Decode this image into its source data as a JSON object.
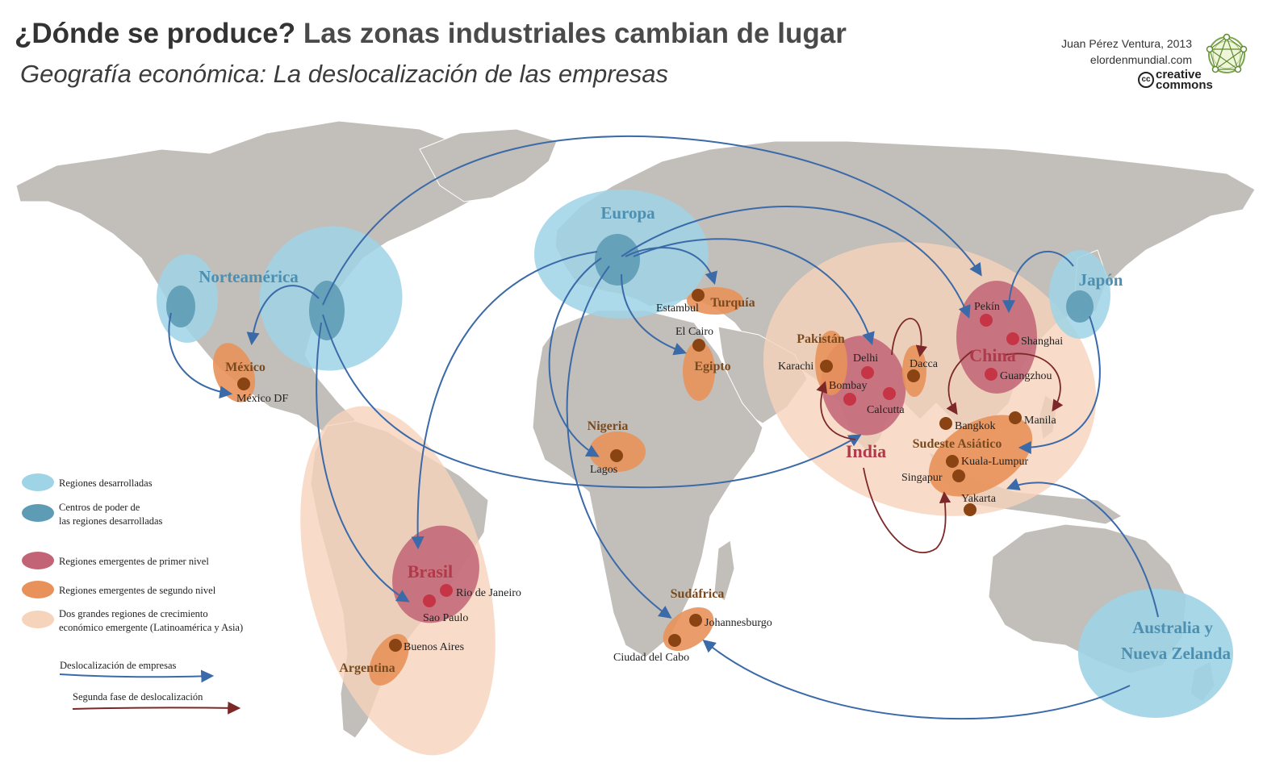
{
  "header": {
    "title_part1": "¿Dónde se produce?",
    "title_part2": "Las zonas industriales cambian de lugar",
    "subtitle": "Geografía económica: La deslocalización de las empresas",
    "credit_author": "Juan Pérez Ventura, 2013",
    "credit_site": "elordenmundial.com",
    "license_top": "creative",
    "license_bottom": "commons",
    "license_mark": "cc"
  },
  "colors": {
    "land": "#c2beb9",
    "developed_region": "#9fd3e6",
    "power_center": "#5e9bb5",
    "emerging_first": "#c26476",
    "emerging_second": "#e8915a",
    "growth_region": "#f6d3bb",
    "arrow_relocation": "#3b6aa8",
    "arrow_second_phase": "#7d2828",
    "city_dot_first": "#c63545",
    "city_dot_second": "#8a4312"
  },
  "regions": {
    "norteamerica": "Norteamérica",
    "europa": "Europa",
    "japon": "Japón",
    "australia_line1": "Australia y",
    "australia_line2": "Nueva Zelanda",
    "mexico": "México",
    "turquia": "Turquía",
    "egipto": "Egipto",
    "pakistan": "Pakistán",
    "nigeria": "Nigeria",
    "sudafrica": "Sudáfrica",
    "argentina": "Argentina",
    "sudeste_asiatico": "Sudeste Asiático",
    "brasil": "Brasil",
    "india": "India",
    "china": "China"
  },
  "cities": {
    "mexico_df": "México DF",
    "estambul": "Estambul",
    "el_cairo": "El Cairo",
    "karachi": "Karachi",
    "delhi": "Delhi",
    "bombay": "Bombay",
    "calcutta": "Calcutta",
    "dacca": "Dacca",
    "pekin": "Pekín",
    "shanghai": "Shanghai",
    "guangzhou": "Guangzhou",
    "bangkok": "Bangkok",
    "manila": "Manila",
    "kuala_lumpur": "Kuala-Lumpur",
    "singapur": "Singapur",
    "yakarta": "Yakarta",
    "lagos": "Lagos",
    "rio_de_janeiro": "Rio de Janeiro",
    "sao_paulo": "Sao Paulo",
    "buenos_aires": "Buenos Aires",
    "johannesburgo": "Johannesburgo",
    "ciudad_del_cabo": "Ciudad del Cabo"
  },
  "legend": {
    "developed": "Regiones desarrolladas",
    "power_line1": "Centros de poder de",
    "power_line2": "las regiones desarrolladas",
    "emerging_first": "Regiones emergentes de primer nivel",
    "emerging_second": "Regiones emergentes de segundo nivel",
    "growth_line1": "Dos grandes regiones de crecimiento",
    "growth_line2": "económico emergente (Latinoamérica y Asia)",
    "relocation": "Deslocalización de empresas",
    "second_phase": "Segunda fase de deslocalización"
  }
}
